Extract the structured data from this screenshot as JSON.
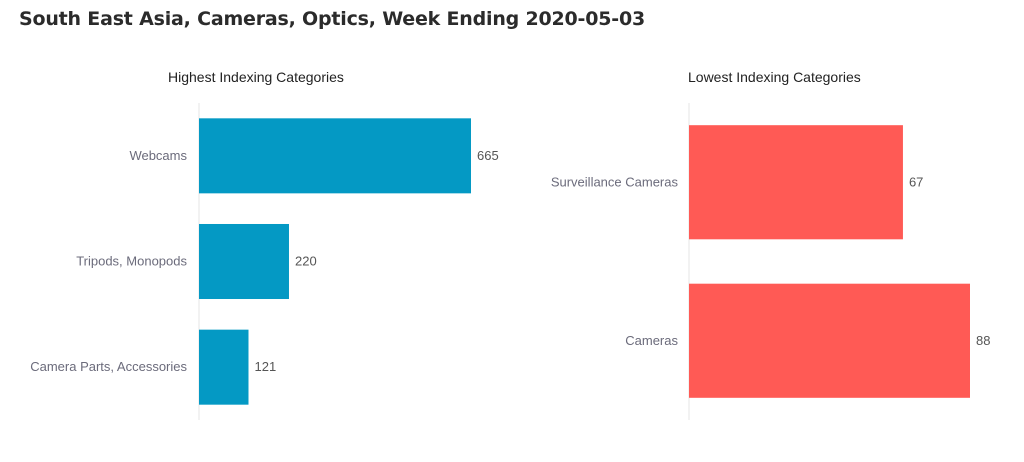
{
  "page": {
    "title": "South East Asia, Cameras, Optics, Week Ending 2020-05-03"
  },
  "chart_data": [
    {
      "type": "bar",
      "orientation": "horizontal",
      "title": "Highest Indexing Categories",
      "categories": [
        "Webcams",
        "Tripods, Monopods",
        "Camera Parts, Accessories"
      ],
      "values": [
        665,
        220,
        121
      ],
      "xlim": [
        0,
        665
      ],
      "color": "#0499C4",
      "data_labels": true,
      "grid": false
    },
    {
      "type": "bar",
      "orientation": "horizontal",
      "title": "Lowest Indexing Categories",
      "categories": [
        "Surveillance Cameras",
        "Cameras"
      ],
      "values": [
        67,
        88
      ],
      "xlim": [
        0,
        88
      ],
      "color": "#FF5A55",
      "data_labels": true,
      "grid": false
    }
  ]
}
